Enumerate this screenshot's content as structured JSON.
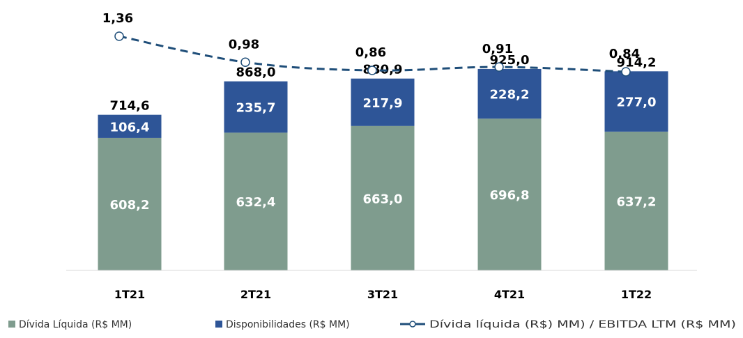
{
  "chart_data": {
    "type": "bar",
    "stacked": true,
    "categories": [
      "1T21",
      "2T21",
      "3T21",
      "4T21",
      "1T22"
    ],
    "series": [
      {
        "name": "Dívida Líquida (R$ MM)",
        "values": [
          608.2,
          632.4,
          663.0,
          696.8,
          637.2
        ],
        "labels": [
          "608,2",
          "632,4",
          "663,0",
          "696,8",
          "637,2"
        ],
        "color": "#7f9c8e"
      },
      {
        "name": "Disponibilidades (R$ MM)",
        "values": [
          106.4,
          235.7,
          217.9,
          228.2,
          277.0
        ],
        "labels": [
          "106,4",
          "235,7",
          "217,9",
          "228,2",
          "277,0"
        ],
        "color": "#2e5597"
      }
    ],
    "totals": {
      "values": [
        714.6,
        868.0,
        880.9,
        925.0,
        914.2
      ],
      "labels": [
        "714,6",
        "868,0",
        "880,9",
        "925,0",
        "914,2"
      ]
    },
    "line_series": {
      "name": "Dívida líquida (R$) MM) / EBITDA LTM (R$ MM)",
      "values": [
        1.36,
        0.98,
        0.86,
        0.91,
        0.84
      ],
      "labels": [
        "1,36",
        "0,98",
        "0,86",
        "0,91",
        "0,84"
      ],
      "color": "#1f4e79",
      "style": "dashed",
      "marker": "circle"
    },
    "grid": false,
    "legend_position": "bottom"
  }
}
